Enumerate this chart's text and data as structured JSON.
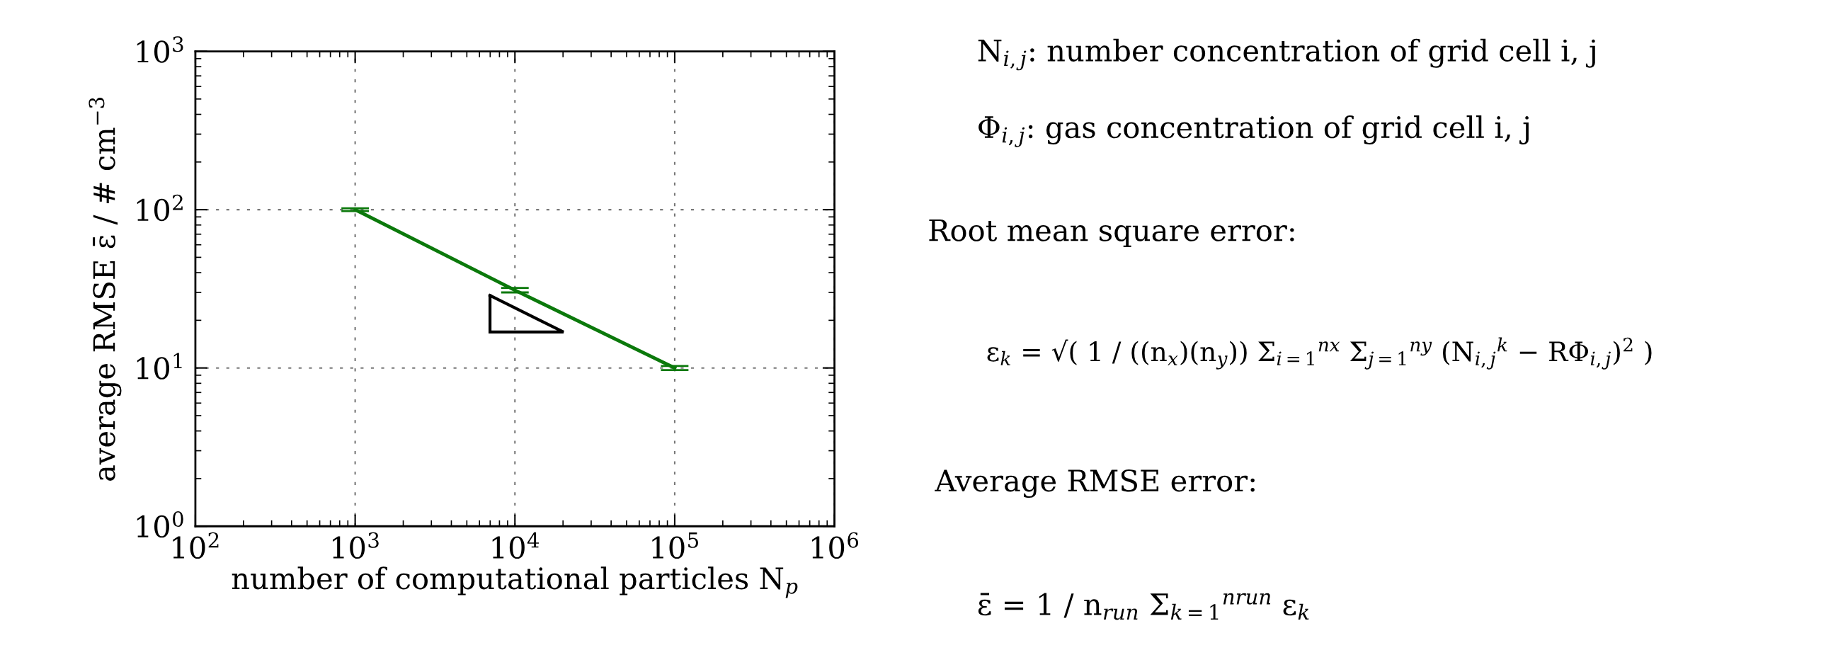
{
  "chart_data": {
    "type": "line",
    "xlabel": "number of computational particles N$_{p}$",
    "ylabel": "average RMSE ε̄ / # cm$^{−3}$",
    "x": [
      1000,
      10000,
      100000
    ],
    "series": [
      {
        "color": "#0b790b",
        "values": [
          100,
          31,
          10
        ],
        "errors": [
          2,
          1,
          0.3
        ]
      }
    ],
    "log": "xy",
    "xlim": [
      100,
      1000000
    ],
    "ylim": [
      1,
      1000
    ],
    "xticks": [
      {
        "value": 100,
        "label": "10$^{2}$"
      },
      {
        "value": 1000,
        "label": "10$^{3}$"
      },
      {
        "value": 10000,
        "label": "10$^{4}$"
      },
      {
        "value": 100000,
        "label": "10$^{5}$"
      },
      {
        "value": 1000000,
        "label": "10$^{6}$"
      }
    ],
    "yticks": [
      {
        "value": 1,
        "label": "10$^{0}$"
      },
      {
        "value": 10,
        "label": "10$^{1}$"
      },
      {
        "value": 100,
        "label": "10$^{2}$"
      },
      {
        "value": 1000,
        "label": "10$^{3}$"
      }
    ],
    "grid": true,
    "marker": "none",
    "line_style": "solid",
    "annotations": [
      "N$_{i,j}$: number concentration of grid cell i, j",
      "Φ$_{i,j}$: gas concentration of grid cell i, j",
      "Root mean square error:",
      "ε$_{k}$ = √( 1 / ((n$_{x}$)(n$_{y}$)) Σ$_{i=1}$$^{nx}$ Σ$_{j=1}$$^{ny}$ (N$_{i,j}$$^{k}$ − RΦ$_{i,j}$)$^{2}$ )",
      "Average RMSE error:",
      "ε̄ = 1 / n$_{run}$ Σ$_{k=1}$$^{nrun}$ ε$_{k}$"
    ]
  }
}
